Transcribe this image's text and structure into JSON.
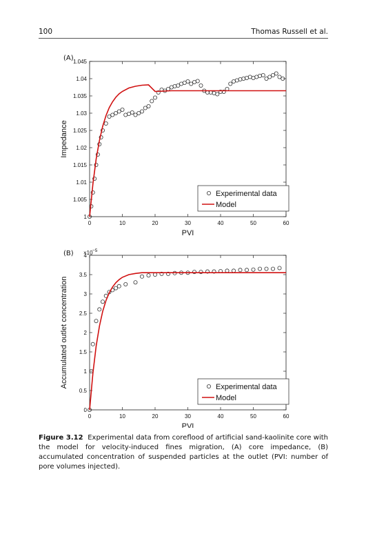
{
  "header": {
    "page_number": "100",
    "authors": "Thomas Russell et al."
  },
  "panels": [
    {
      "label": "(A)",
      "type": "scatter+line",
      "ylabel": "Impedance",
      "xlabel": "PVI",
      "xlim": [
        0,
        60
      ],
      "ylim": [
        1,
        1.045
      ],
      "xticks": [
        "0",
        "10",
        "20",
        "30",
        "40",
        "50",
        "60"
      ],
      "yticks": [
        "1",
        "1.005",
        "1.01",
        "1.015",
        "1.02",
        "1.025",
        "1.03",
        "1.035",
        "1.04",
        "1.045"
      ],
      "legend": [
        "Experimental data",
        "Model"
      ],
      "legend_position": "bottom-right"
    },
    {
      "label": "(B)",
      "type": "scatter+line",
      "ylabel": "Accumulated outlet concentration",
      "xlabel": "PVI",
      "xlim": [
        0,
        60
      ],
      "ylim": [
        0,
        4
      ],
      "y_multiplier": "×10",
      "y_multiplier_exp": "−5",
      "xticks": [
        "0",
        "10",
        "20",
        "30",
        "40",
        "50",
        "60"
      ],
      "yticks": [
        "0",
        "0.5",
        "1",
        "1.5",
        "2",
        "2.5",
        "3",
        "3.5",
        "4"
      ],
      "legend": [
        "Experimental data",
        "Model"
      ],
      "legend_position": "bottom-right"
    }
  ],
  "chart_data": [
    {
      "type": "scatter",
      "title": "",
      "xlabel": "PVI",
      "ylabel": "Impedance",
      "xlim": [
        0,
        60
      ],
      "ylim": [
        1,
        1.045
      ],
      "grid": false,
      "legend_position": "bottom-right",
      "series": [
        {
          "name": "Experimental data",
          "marker": "open-circle",
          "color": "#333333",
          "x": [
            0,
            0.5,
            1,
            1.5,
            2,
            2.5,
            3,
            3.5,
            4,
            5,
            6,
            7,
            8,
            9,
            10,
            11,
            12,
            13,
            14,
            15,
            16,
            17,
            18,
            19,
            20,
            21,
            22,
            23,
            24,
            25,
            26,
            27,
            28,
            29,
            30,
            31,
            32,
            33,
            34,
            35,
            36,
            37,
            38,
            39,
            40,
            41,
            42,
            43,
            44,
            45,
            46,
            47,
            48,
            49,
            50,
            51,
            52,
            53,
            54,
            55,
            56,
            57,
            58,
            59
          ],
          "y": [
            1.0,
            1.003,
            1.007,
            1.011,
            1.015,
            1.018,
            1.021,
            1.023,
            1.025,
            1.027,
            1.029,
            1.0295,
            1.03,
            1.0305,
            1.031,
            1.0295,
            1.0298,
            1.0302,
            1.0295,
            1.03,
            1.0305,
            1.0315,
            1.032,
            1.0335,
            1.0345,
            1.036,
            1.0368,
            1.0365,
            1.037,
            1.0375,
            1.0378,
            1.038,
            1.0385,
            1.0388,
            1.0392,
            1.0385,
            1.039,
            1.0393,
            1.038,
            1.0365,
            1.036,
            1.036,
            1.0358,
            1.0355,
            1.0362,
            1.0362,
            1.037,
            1.0385,
            1.0392,
            1.0395,
            1.0398,
            1.04,
            1.0402,
            1.0405,
            1.0402,
            1.0405,
            1.0408,
            1.041,
            1.04,
            1.0405,
            1.041,
            1.0415,
            1.0405,
            1.04
          ]
        },
        {
          "name": "Model",
          "marker": "line",
          "color": "#d01010",
          "x": [
            0,
            1,
            2,
            3,
            4,
            5,
            6,
            7,
            8,
            9,
            10,
            12,
            14,
            16,
            18,
            20,
            25,
            30,
            40,
            50,
            60
          ],
          "y": [
            1.0,
            1.0095,
            1.0167,
            1.0221,
            1.0262,
            1.0293,
            1.0316,
            1.0333,
            1.0346,
            1.0356,
            1.0363,
            1.0373,
            1.0378,
            1.0381,
            1.0382,
            1.0363,
            1.0365,
            1.0365,
            1.0365,
            1.0365,
            1.0365
          ]
        }
      ]
    },
    {
      "type": "scatter",
      "title": "",
      "xlabel": "PVI",
      "ylabel": "Accumulated outlet concentration",
      "y_scale_note": "×10⁻⁵",
      "xlim": [
        0,
        60
      ],
      "ylim": [
        0,
        4
      ],
      "grid": false,
      "legend_position": "bottom-right",
      "series": [
        {
          "name": "Experimental data",
          "marker": "open-circle",
          "color": "#333333",
          "x": [
            0,
            0.5,
            1,
            2,
            3,
            4,
            5,
            6,
            7,
            8,
            9,
            11,
            14,
            16,
            18,
            20,
            22,
            24,
            26,
            28,
            30,
            32,
            34,
            36,
            38,
            40,
            42,
            44,
            46,
            48,
            50,
            52,
            54,
            56,
            58
          ],
          "y": [
            0.0,
            1.0,
            1.7,
            2.3,
            2.6,
            2.8,
            2.95,
            3.05,
            3.1,
            3.15,
            3.2,
            3.25,
            3.3,
            3.45,
            3.48,
            3.5,
            3.52,
            3.52,
            3.54,
            3.55,
            3.55,
            3.57,
            3.57,
            3.58,
            3.58,
            3.59,
            3.6,
            3.6,
            3.62,
            3.62,
            3.63,
            3.65,
            3.65,
            3.65,
            3.67
          ]
        },
        {
          "name": "Model",
          "marker": "line",
          "color": "#d01010",
          "x": [
            0,
            1,
            2,
            3,
            4,
            5,
            6,
            7,
            8,
            9,
            10,
            12,
            14,
            16,
            18,
            20,
            25,
            30,
            40,
            50,
            60
          ],
          "y": [
            0.0,
            0.95,
            1.65,
            2.17,
            2.55,
            2.83,
            3.03,
            3.18,
            3.29,
            3.37,
            3.43,
            3.5,
            3.53,
            3.55,
            3.55,
            3.55,
            3.55,
            3.55,
            3.55,
            3.55,
            3.55
          ]
        }
      ]
    }
  ],
  "caption": {
    "label": "Figure 3.12",
    "text": "Experimental data from coreflood of artificial sand-kaolinite core with the model for velocity-induced fines migration, (A) core impedance, (B) accumulated concentration of suspended particles at the outlet (PVI: number of pore volumes injected)."
  }
}
